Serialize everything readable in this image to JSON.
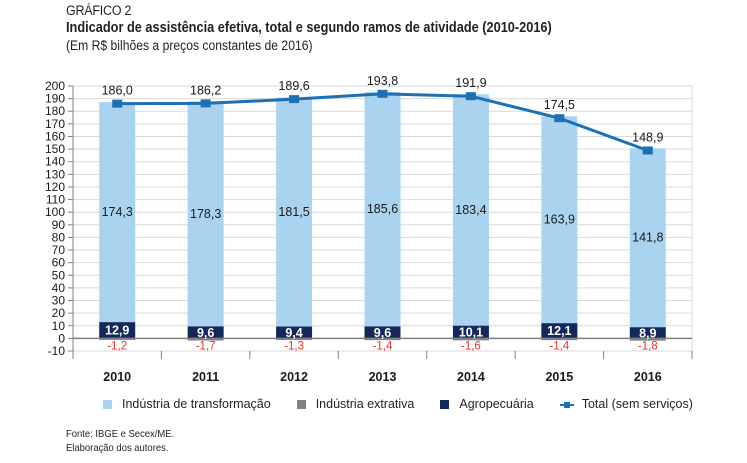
{
  "header": {
    "label": "GRÁFICO 2",
    "title": "Indicador de assistência efetiva, total e segundo ramos de atividade (2010-2016)",
    "subtitle": "(Em R$ bilhões a preços constantes de 2016)"
  },
  "chart_data": {
    "type": "bar",
    "title": "Indicador de assistência efetiva, total e segundo ramos de atividade (2010-2016)",
    "subtitle": "(Em R$ bilhões a preços constantes de 2016)",
    "xlabel": "",
    "ylabel": "",
    "ylim": [
      -10,
      200
    ],
    "yticks": [
      200,
      190,
      180,
      170,
      160,
      150,
      140,
      130,
      120,
      110,
      100,
      90,
      80,
      70,
      60,
      50,
      40,
      30,
      20,
      10,
      0,
      -10
    ],
    "grid": true,
    "legend_position": "bottom",
    "categories": [
      "2010",
      "2011",
      "2012",
      "2013",
      "2014",
      "2015",
      "2016"
    ],
    "series": [
      {
        "name": "Indústria de transformação",
        "kind": "stacked-bar",
        "color": "#a9d3ee",
        "values": [
          174.3,
          178.3,
          181.5,
          185.6,
          183.4,
          163.9,
          141.8
        ],
        "labels": [
          "174,3",
          "178,3",
          "181,5",
          "185,6",
          "183,4",
          "163,9",
          "141,8"
        ]
      },
      {
        "name": "Indústria extrativa",
        "kind": "stacked-bar",
        "color": "#808080",
        "values": [
          -1.2,
          -1.7,
          -1.3,
          -1.4,
          -1.6,
          -1.4,
          -1.8
        ],
        "labels": [
          "-1,2",
          "-1,7",
          "-1,3",
          "-1,4",
          "-1,6",
          "-1,4",
          "-1,8"
        ],
        "label_color": "#e8312f"
      },
      {
        "name": "Agropecuária",
        "kind": "stacked-bar",
        "color": "#14285a",
        "values": [
          12.9,
          9.6,
          9.4,
          9.6,
          10.1,
          12.1,
          8.9
        ],
        "labels": [
          "12,9",
          "9,6",
          "9,4",
          "9,6",
          "10,1",
          "12,1",
          "8,9"
        ]
      },
      {
        "name": "Total (sem serviços)",
        "kind": "line",
        "color": "#1f6fb5",
        "values": [
          186.0,
          186.2,
          189.6,
          193.8,
          191.9,
          174.5,
          148.9
        ],
        "labels": [
          "186,0",
          "186,2",
          "189,6",
          "193,8",
          "191,9",
          "174,5",
          "148,9"
        ]
      }
    ]
  },
  "legend": {
    "items": [
      {
        "label": "Indústria de transformação",
        "color": "#a9d3ee"
      },
      {
        "label": "Indústria extrativa",
        "color": "#808080"
      },
      {
        "label": "Agropecuária",
        "color": "#14285a"
      },
      {
        "label": "Total (sem serviços)",
        "color": "#1f6fb5"
      }
    ]
  },
  "source": {
    "line1": "Fonte: IBGE e Secex/ME.",
    "line2": "Elaboração dos autores."
  }
}
